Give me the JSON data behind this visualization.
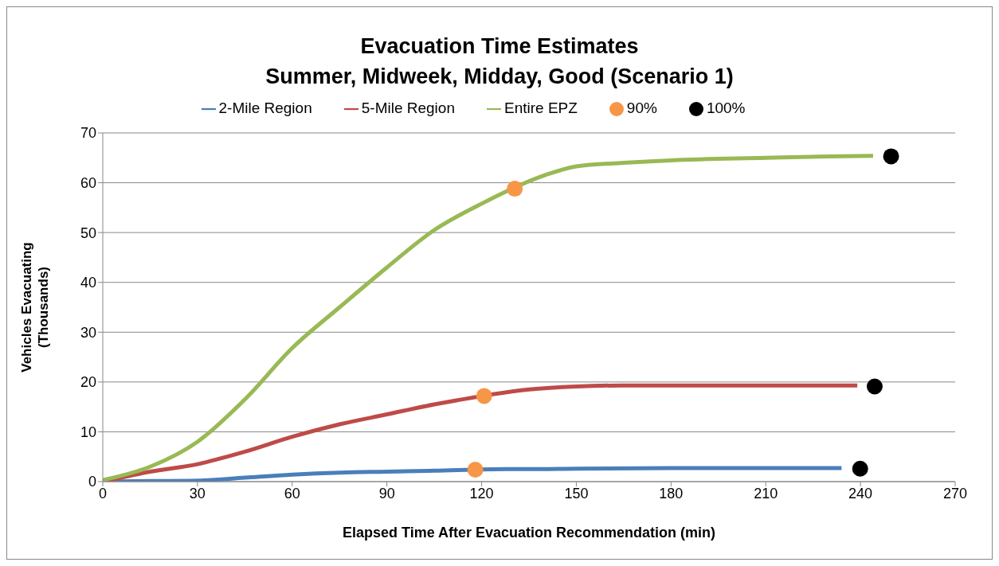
{
  "chart_data": {
    "type": "line",
    "title": "Evacuation Time Estimates\nSummer, Midweek, Midday, Good (Scenario 1)",
    "xlabel": "Elapsed Time After Evacuation Recommendation (min)",
    "ylabel": "Vehicles Evacuating\n(Thousands)",
    "xlim": [
      0,
      270
    ],
    "xticks": [
      0,
      30,
      60,
      90,
      120,
      150,
      180,
      210,
      240,
      270
    ],
    "ylim": [
      0,
      70
    ],
    "yticks": [
      0,
      10,
      20,
      30,
      40,
      50,
      60,
      70
    ],
    "grid": "y",
    "legend": "top",
    "series": [
      {
        "name": "2-Mile Region",
        "color": "#4a7ebb",
        "x": [
          0,
          15,
          30,
          45,
          60,
          75,
          90,
          105,
          128,
          135,
          150,
          180,
          210,
          234
        ],
        "values": [
          0,
          0.1,
          0.2,
          0.8,
          1.4,
          1.8,
          2.0,
          2.2,
          2.5,
          2.5,
          2.6,
          2.7,
          2.7,
          2.7
        ]
      },
      {
        "name": "5-Mile Region",
        "color": "#be4b48",
        "x": [
          0,
          15,
          30,
          45,
          60,
          75,
          90,
          105,
          112,
          135,
          150,
          165,
          180,
          210,
          239
        ],
        "values": [
          0,
          2,
          3.5,
          6,
          9,
          11.5,
          13.5,
          15.5,
          16.3,
          18.5,
          19.1,
          19.3,
          19.3,
          19.3,
          19.3
        ]
      },
      {
        "name": "Entire EPZ",
        "color": "#98b954",
        "x": [
          0,
          15,
          30,
          45,
          60,
          75,
          90,
          105,
          120,
          140,
          150,
          165,
          180,
          210,
          230,
          244
        ],
        "values": [
          0.3,
          3,
          8,
          16.5,
          26.8,
          35,
          43,
          50.5,
          55.8,
          61.5,
          63.3,
          64,
          64.5,
          65,
          65.3,
          65.4
        ]
      },
      {
        "name": "90%",
        "type": "scatter",
        "color": "#f79646",
        "x": [
          118,
          120.8,
          130.5
        ],
        "values": [
          2.4,
          17.2,
          58.8
        ]
      },
      {
        "name": "100%",
        "type": "scatter",
        "color": "#000000",
        "x": [
          239.9,
          244.5,
          249.7
        ],
        "values": [
          2.6,
          19.1,
          65.3
        ]
      }
    ]
  }
}
